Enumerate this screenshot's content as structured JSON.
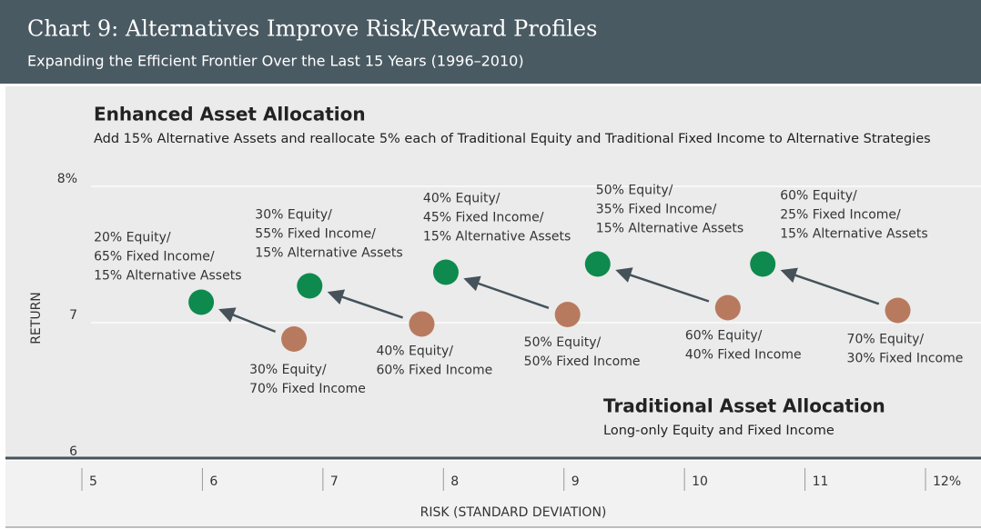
{
  "chart_data": {
    "type": "scatter",
    "title": "Chart 9: Alternatives Improve Risk/Reward Profiles",
    "subtitle": "Expanding the Efficient Frontier Over the Last 15 Years (1996–2010)",
    "x_label": "RISK (STANDARD DEVIATION)",
    "y_label": "RETURN",
    "xlim": [
      5,
      12
    ],
    "xticks": [
      5,
      6,
      7,
      8,
      9,
      10,
      11,
      {
        "value": 12,
        "label": "12%"
      }
    ],
    "ylim": [
      6,
      8
    ],
    "yticks": [
      6,
      7,
      {
        "value": 8,
        "label": "8%"
      }
    ],
    "grid": true,
    "series": [
      {
        "name": "Enhanced Asset Allocation",
        "description": "Add 15% Alternative Assets and reallocate 5% each of Traditional Equity and Traditional Fixed Income to Alternative Strategies",
        "color": "#0e8a4e",
        "x": [
          5.99,
          6.89,
          8.02,
          9.28,
          10.65
        ],
        "values": [
          7.15,
          7.27,
          7.37,
          7.43,
          7.43
        ],
        "point_labels": [
          [
            "20% Equity/",
            "65% Fixed Income/",
            "15% Alternative Assets"
          ],
          [
            "30% Equity/",
            "55% Fixed Income/",
            "15% Alternative Assets"
          ],
          [
            "40% Equity/",
            "45% Fixed Income/",
            "15% Alternative Assets"
          ],
          [
            "50% Equity/",
            "35% Fixed Income/",
            "15% Alternative Assets"
          ],
          [
            "60% Equity/",
            "25% Fixed Income/",
            "15% Alternative Assets"
          ]
        ]
      },
      {
        "name": "Traditional Asset Allocation",
        "description": "Long-only Equity and Fixed Income",
        "color": "#b87a5e",
        "x": [
          6.76,
          7.82,
          9.03,
          10.36,
          11.77
        ],
        "values": [
          6.88,
          6.99,
          7.06,
          7.11,
          7.09
        ],
        "point_labels": [
          [
            "30% Equity/",
            "70% Fixed Income"
          ],
          [
            "40% Equity/",
            "60% Fixed Income"
          ],
          [
            "50% Equity/",
            "50% Fixed Income"
          ],
          [
            "60% Equity/",
            "40% Fixed Income"
          ],
          [
            "70% Equity/",
            "30% Fixed Income"
          ]
        ]
      }
    ]
  }
}
